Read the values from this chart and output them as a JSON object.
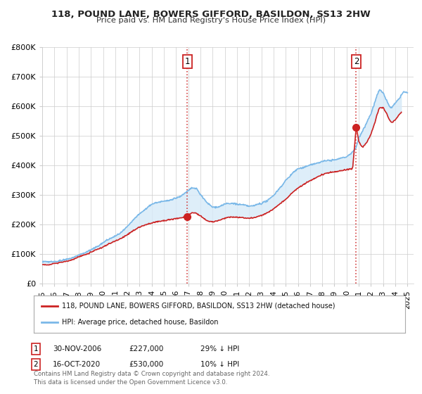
{
  "title": "118, POUND LANE, BOWERS GIFFORD, BASILDON, SS13 2HW",
  "subtitle": "Price paid vs. HM Land Registry's House Price Index (HPI)",
  "ylabel_ticks": [
    "£0",
    "£100K",
    "£200K",
    "£300K",
    "£400K",
    "£500K",
    "£600K",
    "£700K",
    "£800K"
  ],
  "ytick_values": [
    0,
    100000,
    200000,
    300000,
    400000,
    500000,
    600000,
    700000,
    800000
  ],
  "ylim": [
    0,
    800000
  ],
  "xlim_start": 1995.0,
  "xlim_end": 2025.5,
  "years_ticks": [
    1995,
    1996,
    1997,
    1998,
    1999,
    2000,
    2001,
    2002,
    2003,
    2004,
    2005,
    2006,
    2007,
    2008,
    2009,
    2010,
    2011,
    2012,
    2013,
    2014,
    2015,
    2016,
    2017,
    2018,
    2019,
    2020,
    2021,
    2022,
    2023,
    2024,
    2025
  ],
  "hpi_color": "#7ab8e8",
  "hpi_fill_color": "#d6eaf8",
  "price_color": "#cc2222",
  "purchase1_x": 2006.917,
  "purchase1_y": 227000,
  "purchase1_label": "1",
  "purchase2_x": 2020.792,
  "purchase2_y": 530000,
  "purchase2_label": "2",
  "legend_line1": "118, POUND LANE, BOWERS GIFFORD, BASILDON, SS13 2HW (detached house)",
  "legend_line2": "HPI: Average price, detached house, Basildon",
  "footnote": "Contains HM Land Registry data © Crown copyright and database right 2024.\nThis data is licensed under the Open Government Licence v3.0.",
  "bg_color": "#ffffff",
  "grid_color": "#cccccc",
  "hpi_key_points": [
    [
      1995.0,
      75000
    ],
    [
      1995.5,
      73000
    ],
    [
      1996.0,
      77000
    ],
    [
      1996.5,
      80000
    ],
    [
      1997.0,
      86000
    ],
    [
      1997.5,
      92000
    ],
    [
      1998.0,
      100000
    ],
    [
      1998.5,
      108000
    ],
    [
      1999.0,
      118000
    ],
    [
      1999.5,
      130000
    ],
    [
      2000.0,
      142000
    ],
    [
      2000.5,
      155000
    ],
    [
      2001.0,
      165000
    ],
    [
      2001.5,
      178000
    ],
    [
      2002.0,
      196000
    ],
    [
      2002.5,
      218000
    ],
    [
      2003.0,
      238000
    ],
    [
      2003.5,
      255000
    ],
    [
      2004.0,
      268000
    ],
    [
      2004.5,
      275000
    ],
    [
      2005.0,
      278000
    ],
    [
      2005.5,
      282000
    ],
    [
      2006.0,
      290000
    ],
    [
      2006.5,
      300000
    ],
    [
      2007.0,
      315000
    ],
    [
      2007.3,
      325000
    ],
    [
      2007.7,
      320000
    ],
    [
      2008.0,
      300000
    ],
    [
      2008.5,
      272000
    ],
    [
      2009.0,
      255000
    ],
    [
      2009.5,
      258000
    ],
    [
      2010.0,
      268000
    ],
    [
      2010.5,
      268000
    ],
    [
      2011.0,
      265000
    ],
    [
      2011.5,
      262000
    ],
    [
      2012.0,
      258000
    ],
    [
      2012.5,
      260000
    ],
    [
      2013.0,
      265000
    ],
    [
      2013.5,
      275000
    ],
    [
      2014.0,
      295000
    ],
    [
      2014.5,
      320000
    ],
    [
      2015.0,
      345000
    ],
    [
      2015.5,
      368000
    ],
    [
      2016.0,
      385000
    ],
    [
      2016.5,
      390000
    ],
    [
      2017.0,
      402000
    ],
    [
      2017.5,
      408000
    ],
    [
      2018.0,
      415000
    ],
    [
      2018.5,
      418000
    ],
    [
      2019.0,
      420000
    ],
    [
      2019.5,
      425000
    ],
    [
      2020.0,
      430000
    ],
    [
      2020.5,
      445000
    ],
    [
      2020.792,
      460000
    ],
    [
      2021.0,
      490000
    ],
    [
      2021.5,
      530000
    ],
    [
      2022.0,
      575000
    ],
    [
      2022.3,
      610000
    ],
    [
      2022.5,
      635000
    ],
    [
      2022.7,
      655000
    ],
    [
      2023.0,
      645000
    ],
    [
      2023.3,
      620000
    ],
    [
      2023.5,
      600000
    ],
    [
      2023.7,
      595000
    ],
    [
      2024.0,
      610000
    ],
    [
      2024.3,
      625000
    ],
    [
      2024.5,
      640000
    ],
    [
      2024.7,
      650000
    ],
    [
      2025.0,
      645000
    ]
  ],
  "price_key_points": [
    [
      1995.0,
      65000
    ],
    [
      1995.5,
      63000
    ],
    [
      1996.0,
      67000
    ],
    [
      1996.5,
      70000
    ],
    [
      1997.0,
      75000
    ],
    [
      1997.5,
      80000
    ],
    [
      1998.0,
      88000
    ],
    [
      1998.5,
      95000
    ],
    [
      1999.0,
      103000
    ],
    [
      1999.5,
      112000
    ],
    [
      2000.0,
      122000
    ],
    [
      2000.5,
      133000
    ],
    [
      2001.0,
      142000
    ],
    [
      2001.5,
      152000
    ],
    [
      2002.0,
      165000
    ],
    [
      2002.5,
      180000
    ],
    [
      2003.0,
      192000
    ],
    [
      2003.5,
      200000
    ],
    [
      2004.0,
      205000
    ],
    [
      2004.5,
      210000
    ],
    [
      2005.0,
      212000
    ],
    [
      2005.5,
      215000
    ],
    [
      2006.0,
      218000
    ],
    [
      2006.5,
      222000
    ],
    [
      2006.917,
      227000
    ],
    [
      2007.2,
      235000
    ],
    [
      2007.5,
      238000
    ],
    [
      2007.8,
      232000
    ],
    [
      2008.0,
      225000
    ],
    [
      2008.5,
      210000
    ],
    [
      2009.0,
      205000
    ],
    [
      2009.5,
      210000
    ],
    [
      2010.0,
      218000
    ],
    [
      2010.5,
      222000
    ],
    [
      2011.0,
      220000
    ],
    [
      2011.5,
      218000
    ],
    [
      2012.0,
      218000
    ],
    [
      2012.5,
      222000
    ],
    [
      2013.0,
      228000
    ],
    [
      2013.5,
      238000
    ],
    [
      2014.0,
      252000
    ],
    [
      2014.5,
      268000
    ],
    [
      2015.0,
      285000
    ],
    [
      2015.5,
      305000
    ],
    [
      2016.0,
      322000
    ],
    [
      2016.5,
      335000
    ],
    [
      2017.0,
      348000
    ],
    [
      2017.5,
      358000
    ],
    [
      2018.0,
      368000
    ],
    [
      2018.5,
      375000
    ],
    [
      2019.0,
      378000
    ],
    [
      2019.5,
      382000
    ],
    [
      2020.0,
      385000
    ],
    [
      2020.5,
      390000
    ],
    [
      2020.792,
      530000
    ],
    [
      2021.0,
      480000
    ],
    [
      2021.3,
      460000
    ],
    [
      2021.5,
      468000
    ],
    [
      2021.7,
      480000
    ],
    [
      2022.0,
      505000
    ],
    [
      2022.3,
      540000
    ],
    [
      2022.5,
      570000
    ],
    [
      2022.7,
      595000
    ],
    [
      2023.0,
      595000
    ],
    [
      2023.3,
      575000
    ],
    [
      2023.5,
      555000
    ],
    [
      2023.7,
      545000
    ],
    [
      2024.0,
      555000
    ],
    [
      2024.3,
      570000
    ],
    [
      2024.5,
      580000
    ]
  ]
}
